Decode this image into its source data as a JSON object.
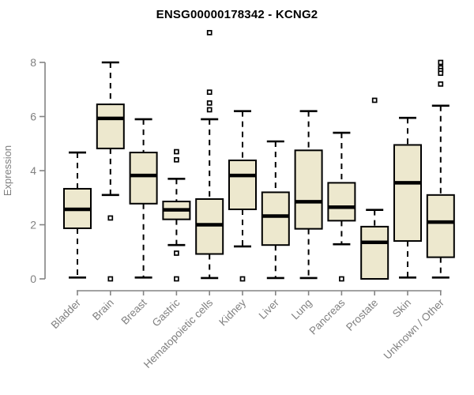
{
  "page": {
    "title": "ENSG00000178342 - KCNG2"
  },
  "colors": {
    "box_fill": "#EDE8CE",
    "box_stroke": "#000000",
    "median": "#000000",
    "whisker": "#000000",
    "outlier": "#000000",
    "axis": "#848484",
    "axis_text": "#808080",
    "title_text": "#000000",
    "background": "#FFFFFF"
  },
  "chart_data": {
    "type": "boxplot",
    "title": "ENSG00000178342 - KCNG2",
    "xlabel": "",
    "ylabel": "Expression",
    "ylim": [
      0,
      8
    ],
    "yticks": [
      0,
      2,
      4,
      6,
      8
    ],
    "grid": false,
    "legend": false,
    "categories": [
      "Bladder",
      "Brain",
      "Breast",
      "Gastric",
      "Hematopoietic cells",
      "Kidney",
      "Liver",
      "Lung",
      "Pancreas",
      "Prostate",
      "Skin",
      "Unknown / Other"
    ],
    "series": [
      {
        "name": "Bladder",
        "low": 0.05,
        "q1": 1.87,
        "median": 2.57,
        "q3": 3.33,
        "high": 4.67,
        "outliers": []
      },
      {
        "name": "Brain",
        "low": 3.1,
        "q1": 4.82,
        "median": 5.93,
        "q3": 6.45,
        "high": 8.0,
        "outliers": [
          2.25,
          0.0
        ]
      },
      {
        "name": "Breast",
        "low": 0.05,
        "q1": 2.78,
        "median": 3.82,
        "q3": 4.67,
        "high": 5.9,
        "outliers": []
      },
      {
        "name": "Gastric",
        "low": 1.25,
        "q1": 2.2,
        "median": 2.55,
        "q3": 2.86,
        "high": 3.7,
        "outliers": [
          4.7,
          4.4,
          0.95,
          0.0
        ]
      },
      {
        "name": "Hematopoietic cells",
        "low": 0.03,
        "q1": 0.92,
        "median": 2.0,
        "q3": 2.95,
        "high": 5.9,
        "outliers": [
          9.1,
          6.9,
          6.5,
          6.25
        ]
      },
      {
        "name": "Kidney",
        "low": 1.2,
        "q1": 2.57,
        "median": 3.82,
        "q3": 4.38,
        "high": 6.2,
        "outliers": [
          0.0
        ]
      },
      {
        "name": "Liver",
        "low": 0.03,
        "q1": 1.25,
        "median": 2.32,
        "q3": 3.2,
        "high": 5.08,
        "outliers": []
      },
      {
        "name": "Lung",
        "low": 0.03,
        "q1": 1.85,
        "median": 2.85,
        "q3": 4.75,
        "high": 6.2,
        "outliers": []
      },
      {
        "name": "Pancreas",
        "low": 1.28,
        "q1": 2.15,
        "median": 2.65,
        "q3": 3.55,
        "high": 5.4,
        "outliers": [
          0.0
        ]
      },
      {
        "name": "Prostate",
        "low": 0.0,
        "q1": 0.0,
        "median": 1.35,
        "q3": 1.93,
        "high": 2.55,
        "outliers": [
          6.6
        ]
      },
      {
        "name": "Skin",
        "low": 0.05,
        "q1": 1.4,
        "median": 3.55,
        "q3": 4.95,
        "high": 5.95,
        "outliers": []
      },
      {
        "name": "Unknown / Other",
        "low": 0.05,
        "q1": 0.8,
        "median": 2.1,
        "q3": 3.1,
        "high": 6.4,
        "outliers": [
          8.0,
          7.8,
          7.7,
          7.6,
          7.2
        ]
      }
    ]
  }
}
